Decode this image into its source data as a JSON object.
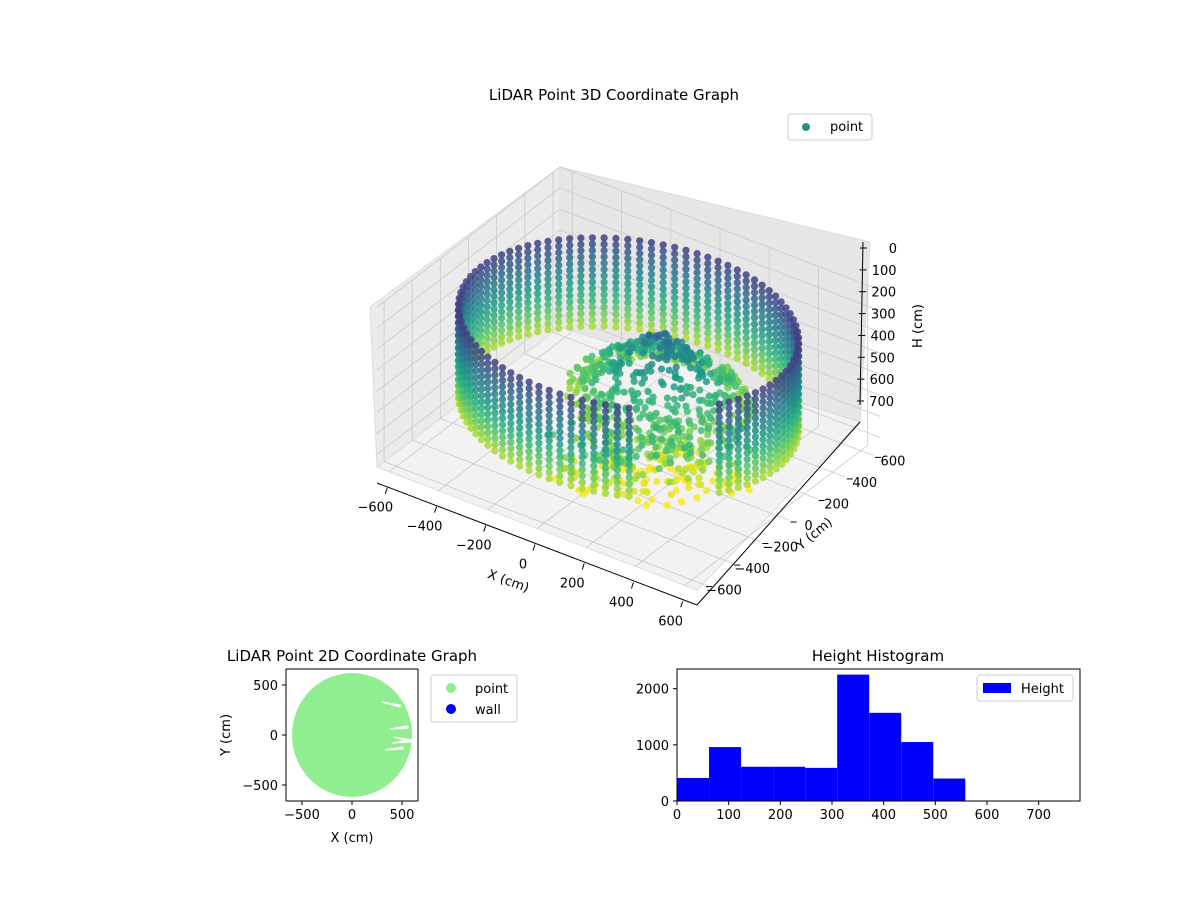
{
  "chart_data": [
    {
      "type": "scatter3d",
      "title": "LiDAR Point 3D Coordinate Graph",
      "xlabel": "X (cm)",
      "ylabel": "Y (cm)",
      "zlabel": "H (cm)",
      "xlim": [
        -650,
        650
      ],
      "ylim": [
        -650,
        650
      ],
      "zlim": [
        0,
        760
      ],
      "z_axis_inverted": true,
      "xticks": [
        -600,
        -400,
        -200,
        0,
        200,
        400,
        600
      ],
      "yticks": [
        -600,
        -400,
        -200,
        0,
        200,
        400,
        600
      ],
      "zticks": [
        0,
        100,
        200,
        300,
        400,
        500,
        600,
        700
      ],
      "colormap": "viridis (by height)",
      "legend": {
        "placement": "top-right",
        "entries": [
          {
            "label": "point",
            "color": "#21918c"
          }
        ]
      },
      "grid": true,
      "series": [
        {
          "name": "point",
          "description_of_shape": "circular wall ring of radius ~600 cm at heights 0-560 cm with interior clutter",
          "wall_radius": 600,
          "wall_height_range": [
            0,
            560
          ]
        }
      ]
    },
    {
      "type": "scatter",
      "title": "LiDAR Point 2D Coordinate Graph",
      "xlabel": "X (cm)",
      "ylabel": "Y (cm)",
      "xlim": [
        -660,
        660
      ],
      "ylim": [
        -660,
        660
      ],
      "xticks": [
        -500,
        0,
        500
      ],
      "yticks": [
        -500,
        0,
        500
      ],
      "legend": {
        "placement": "outside-right",
        "entries": [
          {
            "label": "point",
            "color": "#90ee90"
          },
          {
            "label": "wall",
            "color": "#0000ff"
          }
        ]
      },
      "series": [
        {
          "name": "point",
          "color": "#90ee90",
          "region": "filled disk of radius ~600 cm"
        },
        {
          "name": "wall",
          "color": "#0000ff",
          "region": ""
        }
      ]
    },
    {
      "type": "bar",
      "title": "Height Histogram",
      "xlabel": "",
      "ylabel": "",
      "xlim": [
        0,
        780
      ],
      "ylim": [
        0,
        2350
      ],
      "xticks": [
        0,
        100,
        200,
        300,
        400,
        500,
        600,
        700
      ],
      "yticks": [
        0,
        1000,
        2000
      ],
      "legend": {
        "placement": "top-right",
        "entries": [
          {
            "label": "Height",
            "color": "#0000ff"
          }
        ]
      },
      "bin_edges": [
        0,
        62,
        124,
        186,
        248,
        310,
        372,
        434,
        496,
        558
      ],
      "series": [
        {
          "name": "Height",
          "color": "#0000ff",
          "values": [
            410,
            960,
            610,
            610,
            590,
            2250,
            1570,
            1050,
            400
          ]
        }
      ]
    }
  ]
}
